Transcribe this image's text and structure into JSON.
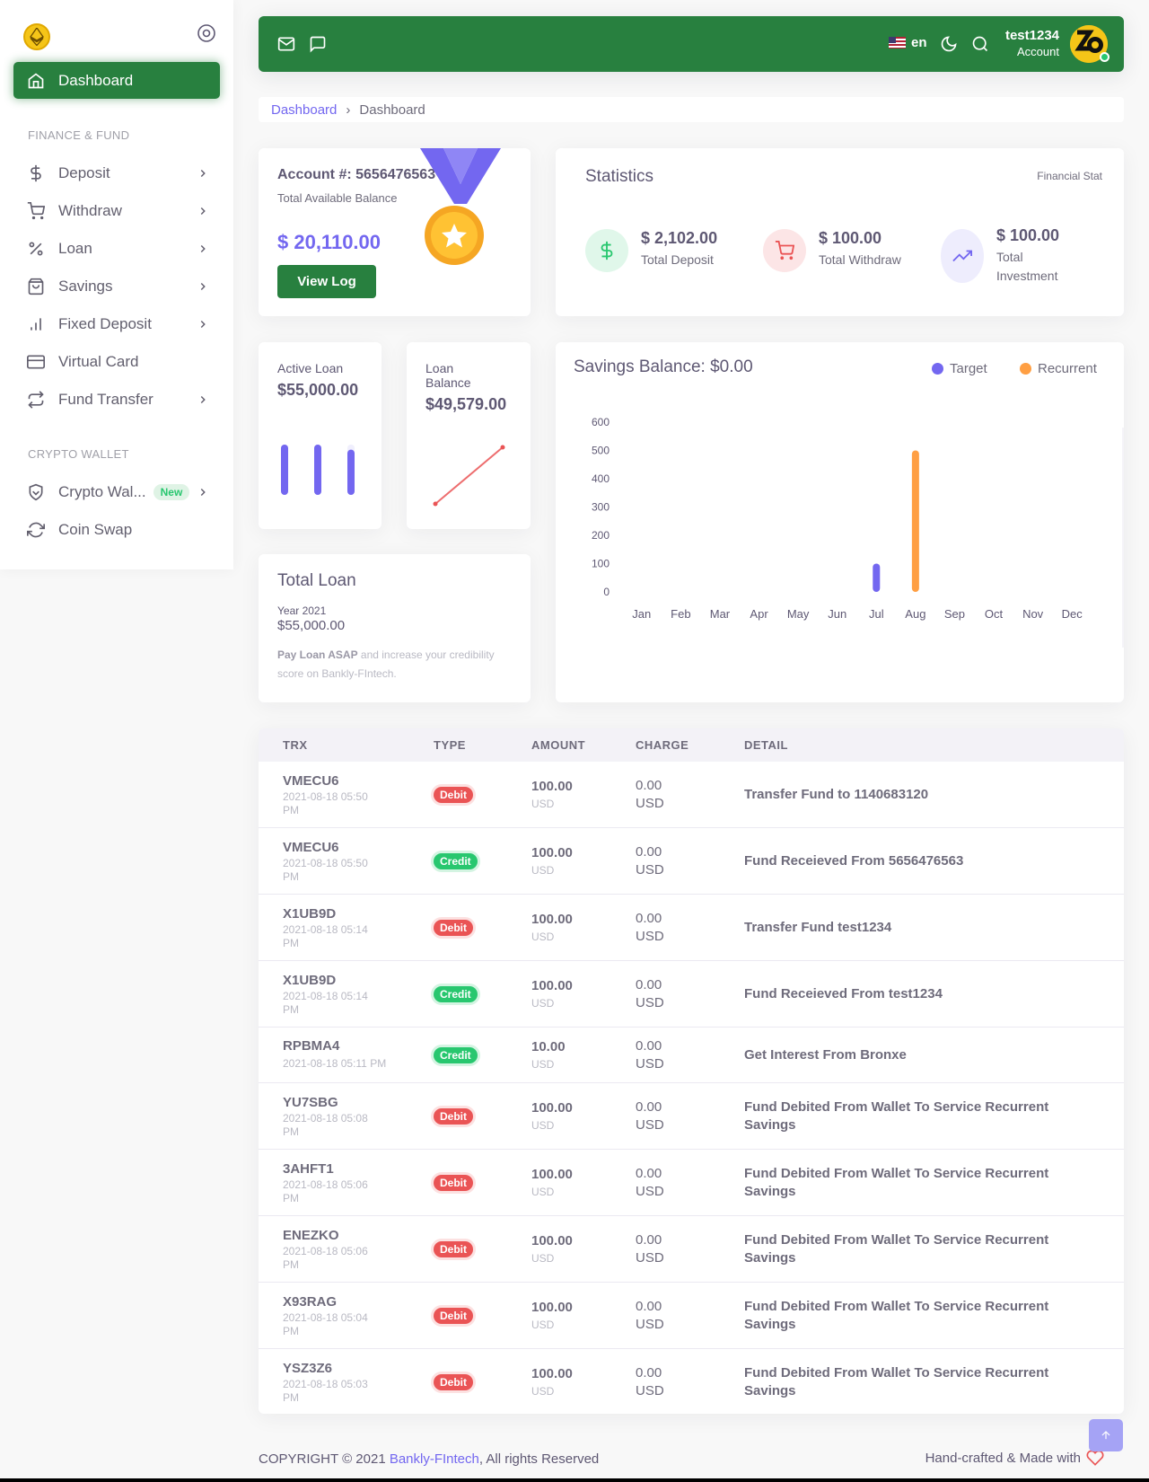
{
  "sidebar": {
    "active_label": "Dashboard",
    "section_finance": "FINANCE & FUND",
    "section_crypto": "CRYPTO WALLET",
    "items": [
      {
        "label": "Deposit",
        "icon": "dollar-icon"
      },
      {
        "label": "Withdraw",
        "icon": "cart-icon"
      },
      {
        "label": "Loan",
        "icon": "percent-icon"
      },
      {
        "label": "Savings",
        "icon": "bag-icon"
      },
      {
        "label": "Fixed Deposit",
        "icon": "bar-chart-icon"
      },
      {
        "label": "Virtual Card",
        "icon": "credit-card-icon"
      },
      {
        "label": "Fund Transfer",
        "icon": "repeat-icon"
      }
    ],
    "crypto_items": [
      {
        "label": "Crypto Wal...",
        "badge": "New",
        "icon": "shield-icon"
      },
      {
        "label": "Coin Swap",
        "icon": "refresh-icon"
      }
    ]
  },
  "header": {
    "lang": "en",
    "username": "test1234",
    "role": "Account"
  },
  "breadcrumb": {
    "root": "Dashboard",
    "current": "Dashboard"
  },
  "account": {
    "number_label": "Account #: 5656476563",
    "balance_label": "Total Available Balance",
    "balance": "$ 20,110.00",
    "button": "View Log"
  },
  "statistics": {
    "title": "Statistics",
    "subtitle": "Financial Stat",
    "items": [
      {
        "value": "$ 2,102.00",
        "label": "Total Deposit"
      },
      {
        "value": "$ 100.00",
        "label": "Total Withdraw"
      },
      {
        "value": "$ 100.00",
        "label": "Total Investment"
      }
    ]
  },
  "active_loan": {
    "label": "Active Loan",
    "value": "$55,000.00",
    "bar_levels": [
      1,
      1,
      0.9
    ]
  },
  "loan_balance": {
    "label": "Loan Balance",
    "value": "$49,579.00"
  },
  "total_loan": {
    "title": "Total Loan",
    "year": "Year 2021",
    "amount": "$55,000.00",
    "note_bold": "Pay Loan ASAP",
    "note": " and increase your credibility score on Bankly-FIntech."
  },
  "savings": {
    "title": "Savings Balance: $0.00",
    "legend_target": "Target",
    "legend_recurrent": "Recurrent",
    "colors": {
      "target": "#7367f0",
      "recurrent": "#ff9f43"
    }
  },
  "chart_data": {
    "type": "bar",
    "categories": [
      "Jan",
      "Feb",
      "Mar",
      "Apr",
      "May",
      "Jun",
      "Jul",
      "Aug",
      "Sep",
      "Oct",
      "Nov",
      "Dec"
    ],
    "series": [
      {
        "name": "Target",
        "values": [
          0,
          0,
          0,
          0,
          0,
          0,
          100,
          0,
          0,
          0,
          0,
          0
        ]
      },
      {
        "name": "Recurrent",
        "values": [
          0,
          0,
          0,
          0,
          0,
          0,
          0,
          500,
          0,
          0,
          0,
          0
        ]
      }
    ],
    "ylim": [
      0,
      600
    ],
    "yticks": [
      0,
      100,
      200,
      300,
      400,
      500,
      600
    ]
  },
  "table": {
    "headers": {
      "trx": "TRX",
      "type": "TYPE",
      "amount": "AMOUNT",
      "charge": "CHARGE",
      "detail": "DETAIL"
    },
    "rows": [
      {
        "trx": "VMECU6",
        "date": "2021-08-18 05:50 PM",
        "type": "Debit",
        "amount": "100.00",
        "cur": "USD",
        "charge": "0.00 USD",
        "detail": "Transfer Fund to 1140683120"
      },
      {
        "trx": "VMECU6",
        "date": "2021-08-18 05:50 PM",
        "type": "Credit",
        "amount": "100.00",
        "cur": "USD",
        "charge": "0.00 USD",
        "detail": "Fund Receieved From 5656476563"
      },
      {
        "trx": "X1UB9D",
        "date": "2021-08-18 05:14 PM",
        "type": "Debit",
        "amount": "100.00",
        "cur": "USD",
        "charge": "0.00 USD",
        "detail": "Transfer Fund test1234"
      },
      {
        "trx": "X1UB9D",
        "date": "2021-08-18 05:14 PM",
        "type": "Credit",
        "amount": "100.00",
        "cur": "USD",
        "charge": "0.00 USD",
        "detail": "Fund Receieved From test1234"
      },
      {
        "trx": "RPBMA4",
        "date": "2021-08-18 05:11 PM",
        "type": "Credit",
        "amount": "10.00",
        "cur": "USD",
        "charge": "0.00 USD",
        "detail": "Get Interest From Bronxe"
      },
      {
        "trx": "YU7SBG",
        "date": "2021-08-18 05:08 PM",
        "type": "Debit",
        "amount": "100.00",
        "cur": "USD",
        "charge": "0.00 USD",
        "detail": "Fund Debited From Wallet To Service Recurrent Savings"
      },
      {
        "trx": "3AHFT1",
        "date": "2021-08-18 05:06 PM",
        "type": "Debit",
        "amount": "100.00",
        "cur": "USD",
        "charge": "0.00 USD",
        "detail": "Fund Debited From Wallet To Service Recurrent Savings"
      },
      {
        "trx": "ENEZKO",
        "date": "2021-08-18 05:06 PM",
        "type": "Debit",
        "amount": "100.00",
        "cur": "USD",
        "charge": "0.00 USD",
        "detail": "Fund Debited From Wallet To Service Recurrent Savings"
      },
      {
        "trx": "X93RAG",
        "date": "2021-08-18 05:04 PM",
        "type": "Debit",
        "amount": "100.00",
        "cur": "USD",
        "charge": "0.00 USD",
        "detail": "Fund Debited From Wallet To Service Recurrent Savings"
      },
      {
        "trx": "YSZ3Z6",
        "date": "2021-08-18 05:03 PM",
        "type": "Debit",
        "amount": "100.00",
        "cur": "USD",
        "charge": "0.00 USD",
        "detail": "Fund Debited From Wallet To Service Recurrent Savings"
      }
    ]
  },
  "footer": {
    "copy": "COPYRIGHT © 2021 ",
    "brand": "Bankly-FIntech",
    "rights": ", All rights Reserved",
    "right": "Hand-crafted & Made with"
  }
}
